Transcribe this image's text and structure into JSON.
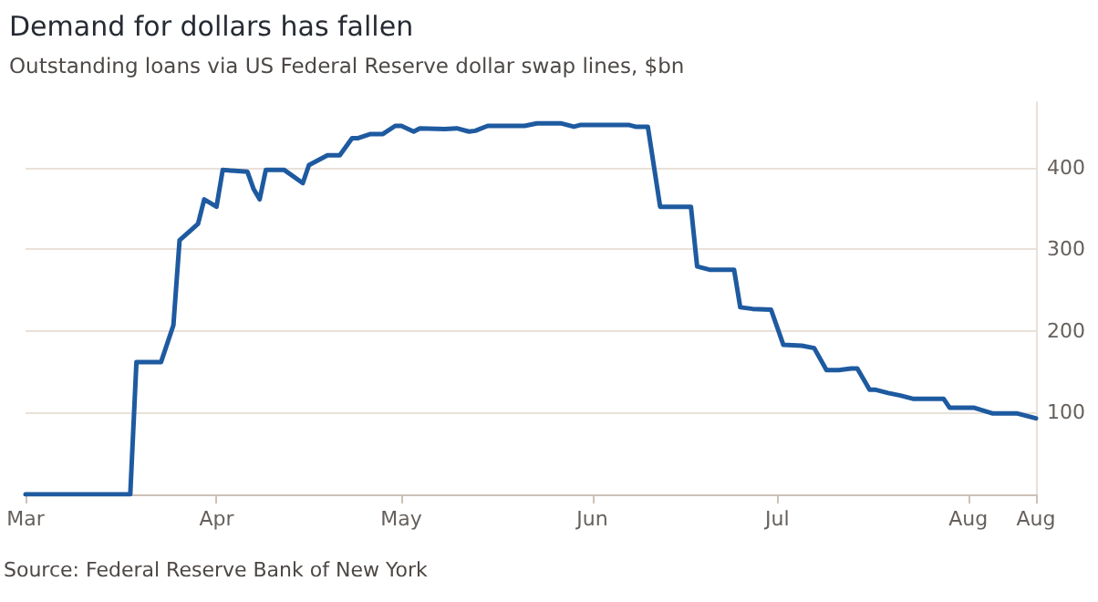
{
  "chart_data": {
    "type": "line",
    "title": "Demand for dollars has fallen",
    "subtitle": "Outstanding loans via US Federal Reserve dollar swap lines, $bn",
    "annotations": [
      "Source: Federal Reserve Bank of New York"
    ],
    "x": [
      "--03-01",
      "--03-18",
      "--03-19",
      "--03-23",
      "--03-25",
      "--03-26",
      "--03-29",
      "--03-30",
      "--04-01",
      "--04-02",
      "--04-06",
      "--04-07",
      "--04-08",
      "--04-09",
      "--04-12",
      "--04-15",
      "--04-16",
      "--04-19",
      "--04-21",
      "--04-23",
      "--04-24",
      "--04-26",
      "--04-28",
      "--04-30",
      "--05-01",
      "--05-03",
      "--05-04",
      "--05-08",
      "--05-10",
      "--05-12",
      "--05-13",
      "--05-15",
      "--05-21",
      "--05-23",
      "--05-27",
      "--05-29",
      "--05-30",
      "--06-07",
      "--06-08",
      "--06-10",
      "--06-12",
      "--06-17",
      "--06-18",
      "--06-20",
      "--06-24",
      "--06-25",
      "--06-27",
      "--06-30",
      "--07-02",
      "--07-05",
      "--07-07",
      "--07-09",
      "--07-11",
      "--07-13",
      "--07-14",
      "--07-16",
      "--07-17",
      "--07-19",
      "--07-21",
      "--07-23",
      "--07-28",
      "--07-29",
      "--08-02",
      "--08-05",
      "--08-09",
      "--08-12"
    ],
    "series": [
      {
        "color": "#1e5aa0",
        "values": [
          0,
          0,
          162,
          162,
          207,
          311,
          331,
          361,
          352,
          397,
          395,
          374,
          361,
          397,
          397,
          381,
          403,
          415,
          415,
          436,
          436,
          441,
          441,
          451,
          451,
          444,
          448,
          447,
          448,
          444,
          445,
          451,
          451,
          454,
          454,
          450,
          452,
          452,
          450,
          450,
          352,
          352,
          279,
          275,
          275,
          229,
          227,
          226,
          183,
          182,
          179,
          152,
          152,
          154,
          154,
          128,
          128,
          124,
          121,
          117,
          117,
          106,
          106,
          99,
          99,
          93
        ]
      }
    ],
    "xlim": [
      "--03-01",
      "--08-12"
    ],
    "xticks": [
      {
        "value": "--03-01",
        "label": "Mar"
      },
      {
        "value": "--04-01",
        "label": "Apr"
      },
      {
        "value": "--05-01",
        "label": "May"
      },
      {
        "value": "--06-01",
        "label": "Jun"
      },
      {
        "value": "--07-01",
        "label": "Jul"
      },
      {
        "value": "--08-01",
        "label": "Aug"
      },
      {
        "value": "--08-12",
        "label": "Aug"
      }
    ],
    "ylim": [
      0,
      480
    ],
    "yticks": [
      100,
      200,
      300,
      400
    ],
    "grid": "y",
    "marker": "none",
    "line_style": "solid"
  }
}
